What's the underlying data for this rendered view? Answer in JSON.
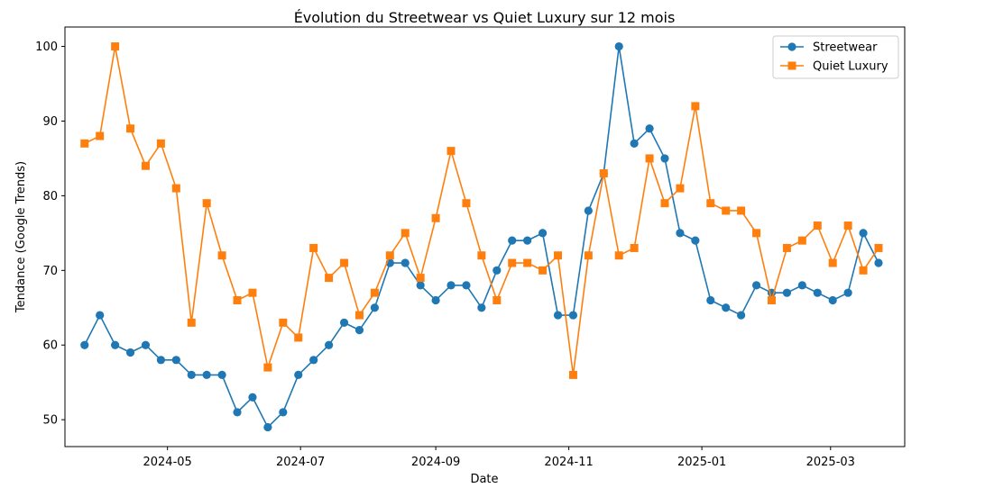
{
  "chart_data": {
    "type": "line",
    "title": "Évolution du Streetwear vs Quiet Luxury sur 12 mois",
    "xlabel": "Date",
    "ylabel": "Tendance (Google Trends)",
    "ylim": [
      46.4,
      102.6
    ],
    "xlim": [
      "2024-03-15",
      "2025-04-04"
    ],
    "y_ticks": [
      50,
      60,
      70,
      80,
      90,
      100
    ],
    "x_ticks": [
      "2024-05-01",
      "2024-07-01",
      "2024-09-01",
      "2024-11-01",
      "2025-01-01",
      "2025-03-01"
    ],
    "x_tick_labels": [
      "2024-05",
      "2024-07",
      "2024-09",
      "2024-11",
      "2025-01",
      "2025-03"
    ],
    "grid": false,
    "legend_position": "top-right",
    "x": [
      "2024-03-24",
      "2024-03-31",
      "2024-04-07",
      "2024-04-14",
      "2024-04-21",
      "2024-04-28",
      "2024-05-05",
      "2024-05-12",
      "2024-05-19",
      "2024-05-26",
      "2024-06-02",
      "2024-06-09",
      "2024-06-16",
      "2024-06-23",
      "2024-06-30",
      "2024-07-07",
      "2024-07-14",
      "2024-07-21",
      "2024-07-28",
      "2024-08-04",
      "2024-08-11",
      "2024-08-18",
      "2024-08-25",
      "2024-09-01",
      "2024-09-08",
      "2024-09-15",
      "2024-09-22",
      "2024-09-29",
      "2024-10-06",
      "2024-10-13",
      "2024-10-20",
      "2024-10-27",
      "2024-11-03",
      "2024-11-10",
      "2024-11-17",
      "2024-11-24",
      "2024-12-01",
      "2024-12-08",
      "2024-12-15",
      "2024-12-22",
      "2024-12-29",
      "2025-01-05",
      "2025-01-12",
      "2025-01-19",
      "2025-01-26",
      "2025-02-02",
      "2025-02-09",
      "2025-02-16",
      "2025-02-23",
      "2025-03-02",
      "2025-03-09",
      "2025-03-16",
      "2025-03-23"
    ],
    "series": [
      {
        "name": "Streetwear",
        "color": "#1f77b4",
        "marker": "circle",
        "values": [
          60,
          64,
          60,
          59,
          60,
          58,
          58,
          56,
          56,
          56,
          51,
          53,
          49,
          51,
          56,
          58,
          60,
          63,
          62,
          65,
          71,
          71,
          68,
          66,
          68,
          68,
          65,
          70,
          74,
          74,
          75,
          64,
          64,
          78,
          83,
          100,
          87,
          89,
          85,
          75,
          74,
          66,
          65,
          64,
          68,
          67,
          67,
          68,
          67,
          66,
          67,
          75,
          71
        ]
      },
      {
        "name": "Quiet Luxury",
        "color": "#ff7f0e",
        "marker": "square",
        "values": [
          87,
          88,
          100,
          89,
          84,
          87,
          81,
          63,
          79,
          72,
          66,
          67,
          57,
          63,
          61,
          73,
          69,
          71,
          64,
          67,
          72,
          75,
          69,
          77,
          86,
          79,
          72,
          66,
          71,
          71,
          70,
          72,
          56,
          72,
          83,
          72,
          73,
          85,
          79,
          81,
          92,
          79,
          78,
          78,
          75,
          66,
          73,
          74,
          76,
          71,
          76,
          70,
          73
        ]
      }
    ]
  }
}
